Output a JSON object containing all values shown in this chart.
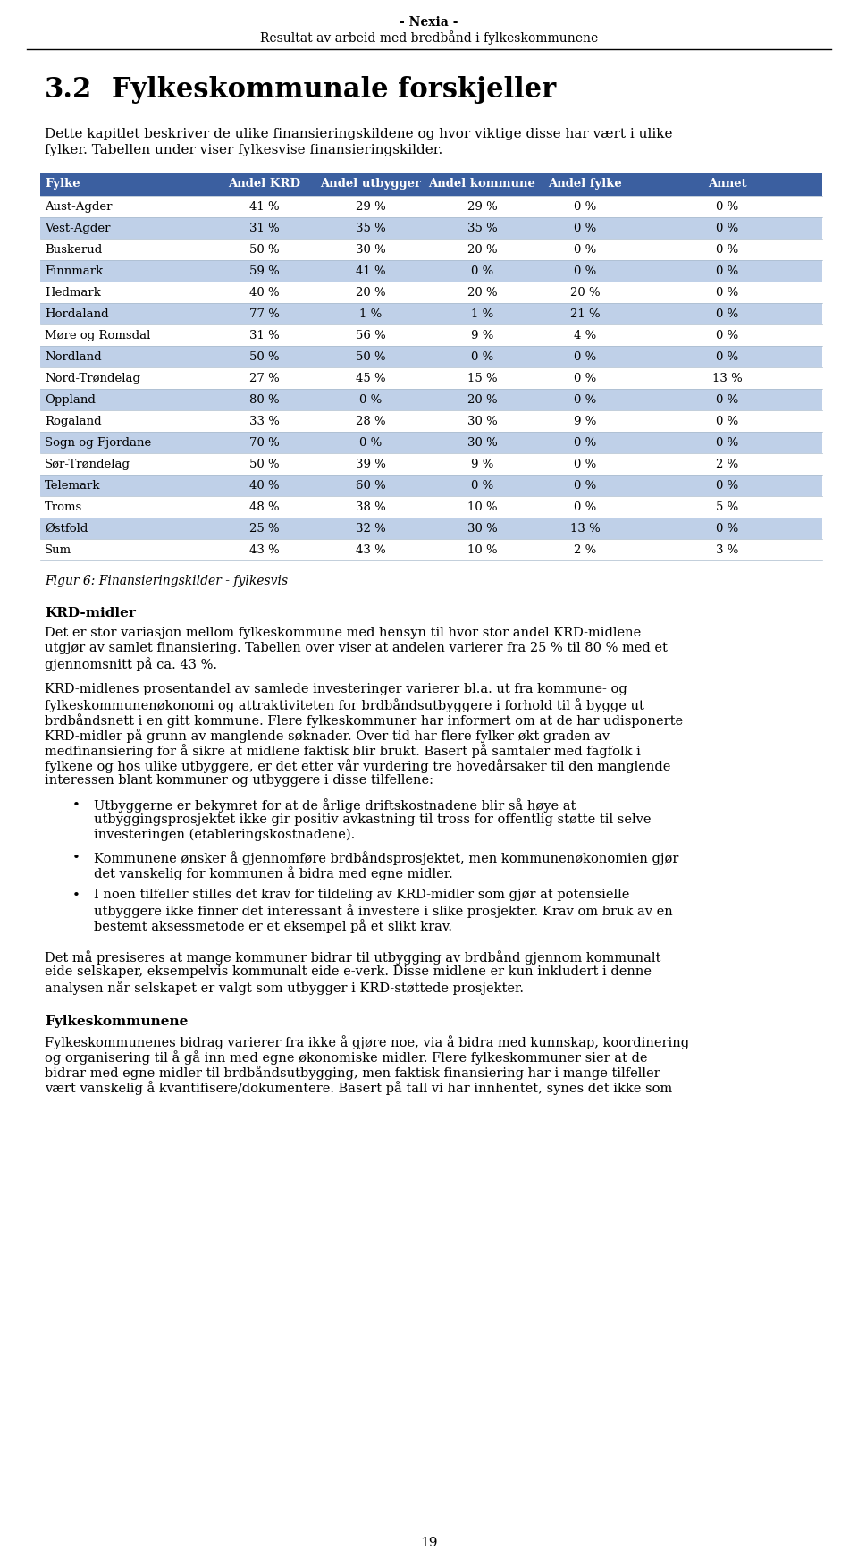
{
  "header_line1": "- Nexia -",
  "header_line2": "Resultat av arbeid med bredbånd i fylkeskommunene",
  "table_headers": [
    "Fylke",
    "Andel KRD",
    "Andel utbygger",
    "Andel kommune",
    "Andel fylke",
    "Annet"
  ],
  "table_data": [
    [
      "Aust-Agder",
      "41 %",
      "29 %",
      "29 %",
      "0 %",
      "0 %"
    ],
    [
      "Vest-Agder",
      "31 %",
      "35 %",
      "35 %",
      "0 %",
      "0 %"
    ],
    [
      "Buskerud",
      "50 %",
      "30 %",
      "20 %",
      "0 %",
      "0 %"
    ],
    [
      "Finnmark",
      "59 %",
      "41 %",
      "0 %",
      "0 %",
      "0 %"
    ],
    [
      "Hedmark",
      "40 %",
      "20 %",
      "20 %",
      "20 %",
      "0 %"
    ],
    [
      "Hordaland",
      "77 %",
      "1 %",
      "1 %",
      "21 %",
      "0 %"
    ],
    [
      "Møre og Romsdal",
      "31 %",
      "56 %",
      "9 %",
      "4 %",
      "0 %"
    ],
    [
      "Nordland",
      "50 %",
      "50 %",
      "0 %",
      "0 %",
      "0 %"
    ],
    [
      "Nord-Trøndelag",
      "27 %",
      "45 %",
      "15 %",
      "0 %",
      "13 %"
    ],
    [
      "Oppland",
      "80 %",
      "0 %",
      "20 %",
      "0 %",
      "0 %"
    ],
    [
      "Rogaland",
      "33 %",
      "28 %",
      "30 %",
      "9 %",
      "0 %"
    ],
    [
      "Sogn og Fjordane",
      "70 %",
      "0 %",
      "30 %",
      "0 %",
      "0 %"
    ],
    [
      "Sør-Trøndelag",
      "50 %",
      "39 %",
      "9 %",
      "0 %",
      "2 %"
    ],
    [
      "Telemark",
      "40 %",
      "60 %",
      "0 %",
      "0 %",
      "0 %"
    ],
    [
      "Troms",
      "48 %",
      "38 %",
      "10 %",
      "0 %",
      "5 %"
    ],
    [
      "Østfold",
      "25 %",
      "32 %",
      "30 %",
      "13 %",
      "0 %"
    ],
    [
      "Sum",
      "43 %",
      "43 %",
      "10 %",
      "2 %",
      "3 %"
    ]
  ],
  "figure_caption": "Figur 6: Finansieringskilder - fylkesvis",
  "krd_header": "KRD-midler",
  "krd_paragraph1": "Det er stor variasjon mellom fylkeskommune med hensyn til hvor stor andel KRD-midlene utgjør av samlet finansiering. Tabellen over viser at andelen varierer fra 25 % til 80 % med et gjennomsnitt på ca. 43 %.",
  "krd_paragraph2": "KRD-midlenes prosentandel av samlede investeringer varierer bl.a. ut fra kommune- og fylkeskommunenøkonomi og attraktiviteten for brdbåndsutbyggere i forhold til å bygge ut brdbåndsnett i en gitt kommune. Flere fylkeskommuner har informert om at de har udisponerte KRD-midler på grunn av manglende søknader. Over tid har flere fylker økt graden av medfinansiering for å sikre at midlene faktisk blir brukt. Basert på samtaler med fagfolk i fylkene og hos ulike utbyggere, er det etter vår vurdering tre hovedårsaker til den manglende interessen blant kommuner og utbyggere i disse tilfellene:",
  "bullet1": "Utbyggerne er bekymret for at de årlige driftskostnadene blir så høye at utbyggingsprosjektet ikke gir positiv avkastning til tross for offentlig støtte til selve investeringen (etableringskostnadene).",
  "bullet2": "Kommunene ønsker å gjennomføre brdbåndsprosjektet, men kommunenøkonomien gjør det vanskelig for kommunen å bidra med egne midler.",
  "bullet3": "I noen tilfeller stilles det krav for tildeling av KRD-midler som gjør at potensielle utbyggere ikke finner det interessant å investere i slike prosjekter. Krav om bruk av en bestemt aksessmetode er et eksempel på et slikt krav.",
  "communal_paragraph": "Det må presiseres at mange kommuner bidrar til utbygging av brdbånd gjennom kommunalt eide selskaper, eksempelvis kommunalt eide e-verk. Disse midlene er kun inkludert i denne analysen når selskapet er valgt som utbygger i KRD-støttede prosjekter.",
  "fylkes_header": "Fylkeskommunene",
  "fylkes_paragraph": "Fylkeskommunenes bidrag varierer fra ikke å gjøre noe, via å bidra med kunnskap, koordinering og organisering til å gå inn med egne økonomiske midler. Flere fylkeskommuner sier at de bidrar med egne midler til brdbåndsutbygging, men faktisk finansiering har i mange tilfeller vært vanskelig å kvantifisere/dokumentere. Basert på tall vi har innhentet, synes det ikke som",
  "page_number": "19",
  "table_header_color": "#3B5FA0",
  "table_alt_row_color": "#BFD0E8",
  "table_white_row_color": "#FFFFFF",
  "background_color": "#FFFFFF"
}
